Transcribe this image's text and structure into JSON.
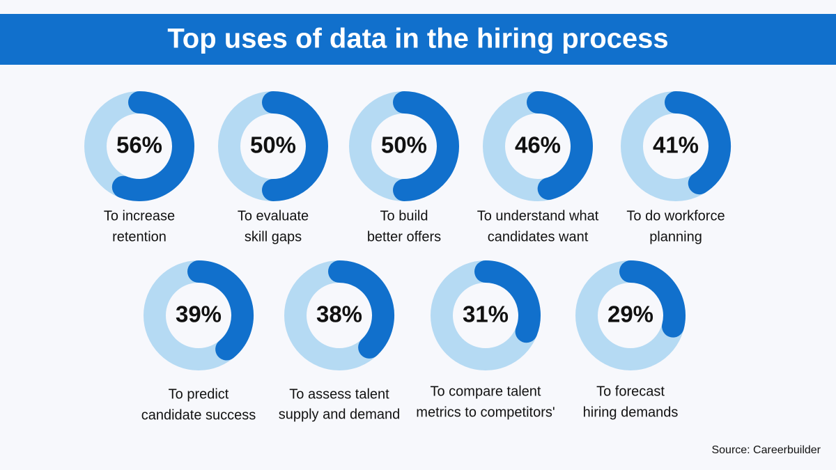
{
  "title": "Top uses of data in the hiring process",
  "source": "Source: Careerbuilder",
  "chart_data": [
    {
      "type": "donut",
      "values": [
        56
      ],
      "value_labels": [
        "56%"
      ],
      "label": [
        "To increase",
        "retention"
      ],
      "color": "#1170cc",
      "track_color": "#b5daf3"
    },
    {
      "type": "donut",
      "values": [
        50
      ],
      "value_labels": [
        "50%"
      ],
      "label": [
        "To evaluate",
        "skill gaps"
      ],
      "color": "#1170cc",
      "track_color": "#b5daf3"
    },
    {
      "type": "donut",
      "values": [
        50
      ],
      "value_labels": [
        "50%"
      ],
      "label": [
        "To build",
        "better offers"
      ],
      "color": "#1170cc",
      "track_color": "#b5daf3"
    },
    {
      "type": "donut",
      "values": [
        46
      ],
      "value_labels": [
        "46%"
      ],
      "label": [
        "To understand what",
        "candidates want"
      ],
      "color": "#1170cc",
      "track_color": "#b5daf3"
    },
    {
      "type": "donut",
      "values": [
        41
      ],
      "value_labels": [
        "41%"
      ],
      "label": [
        "To do workforce",
        "planning"
      ],
      "color": "#1170cc",
      "track_color": "#b5daf3"
    },
    {
      "type": "donut",
      "values": [
        39
      ],
      "value_labels": [
        "39%"
      ],
      "label": [
        "To predict",
        "candidate success"
      ],
      "color": "#1170cc",
      "track_color": "#b5daf3"
    },
    {
      "type": "donut",
      "values": [
        38
      ],
      "value_labels": [
        "38%"
      ],
      "label": [
        "To assess talent",
        "supply and demand"
      ],
      "color": "#1170cc",
      "track_color": "#b5daf3"
    },
    {
      "type": "donut",
      "values": [
        31
      ],
      "value_labels": [
        "31%"
      ],
      "label": [
        "To compare talent",
        "metrics to competitors'"
      ],
      "color": "#1170cc",
      "track_color": "#b5daf3"
    },
    {
      "type": "donut",
      "values": [
        29
      ],
      "value_labels": [
        "29%"
      ],
      "label": [
        "To forecast",
        "hiring demands"
      ],
      "color": "#1170cc",
      "track_color": "#b5daf3"
    }
  ]
}
